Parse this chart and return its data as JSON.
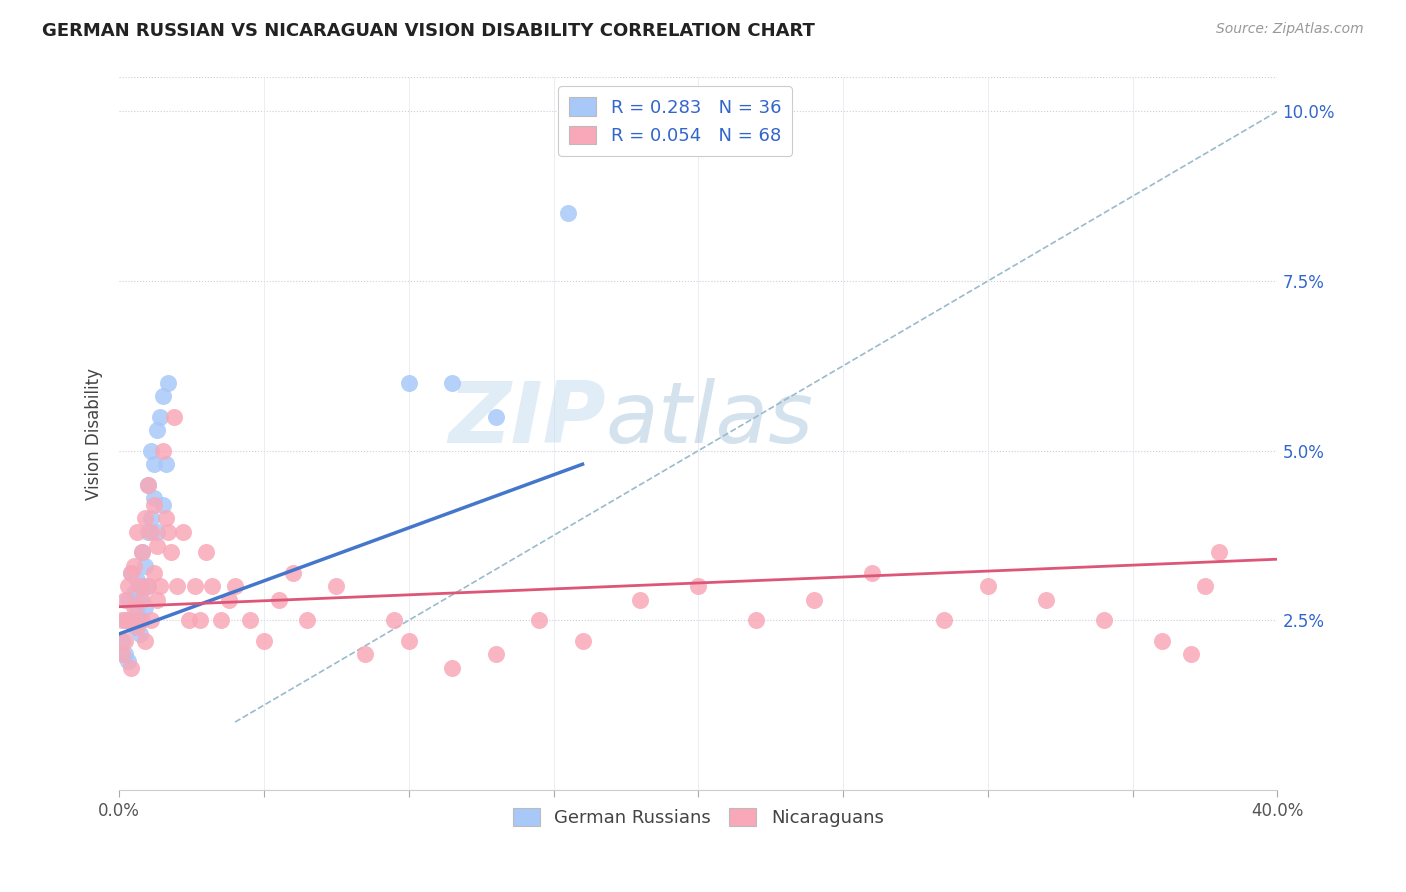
{
  "title": "GERMAN RUSSIAN VS NICARAGUAN VISION DISABILITY CORRELATION CHART",
  "source": "Source: ZipAtlas.com",
  "ylabel": "Vision Disability",
  "watermark_zip": "ZIP",
  "watermark_atlas": "atlas",
  "legend_r1": "R = 0.283   N = 36",
  "legend_r2": "R = 0.054   N = 68",
  "color_gr": "#a8c8f8",
  "color_nic": "#f8a8b8",
  "color_line_gr": "#4477cc",
  "color_line_nic": "#dd5577",
  "color_line_dash": "#99bbcc",
  "xmin": 0.0,
  "xmax": 0.4,
  "ymin": 0.0,
  "ymax": 0.105,
  "ytick_vals": [
    0.025,
    0.05,
    0.075,
    0.1
  ],
  "ytick_labels": [
    "2.5%",
    "5.0%",
    "7.5%",
    "10.0%"
  ],
  "gr_scatter_x": [
    0.001,
    0.002,
    0.002,
    0.003,
    0.003,
    0.004,
    0.004,
    0.005,
    0.005,
    0.006,
    0.006,
    0.007,
    0.007,
    0.008,
    0.008,
    0.008,
    0.009,
    0.009,
    0.01,
    0.01,
    0.01,
    0.011,
    0.011,
    0.012,
    0.012,
    0.013,
    0.013,
    0.014,
    0.015,
    0.015,
    0.016,
    0.017,
    0.1,
    0.115,
    0.13,
    0.155
  ],
  "gr_scatter_y": [
    0.022,
    0.025,
    0.02,
    0.019,
    0.028,
    0.025,
    0.032,
    0.024,
    0.029,
    0.026,
    0.031,
    0.028,
    0.023,
    0.03,
    0.025,
    0.035,
    0.027,
    0.033,
    0.03,
    0.038,
    0.045,
    0.04,
    0.05,
    0.043,
    0.048,
    0.038,
    0.053,
    0.055,
    0.042,
    0.058,
    0.048,
    0.06,
    0.06,
    0.06,
    0.055,
    0.085
  ],
  "nic_scatter_x": [
    0.001,
    0.001,
    0.002,
    0.002,
    0.003,
    0.003,
    0.004,
    0.004,
    0.005,
    0.005,
    0.006,
    0.006,
    0.007,
    0.007,
    0.008,
    0.008,
    0.009,
    0.009,
    0.01,
    0.01,
    0.011,
    0.011,
    0.012,
    0.012,
    0.013,
    0.013,
    0.014,
    0.015,
    0.016,
    0.017,
    0.018,
    0.019,
    0.02,
    0.022,
    0.024,
    0.026,
    0.028,
    0.03,
    0.032,
    0.035,
    0.038,
    0.04,
    0.045,
    0.05,
    0.055,
    0.06,
    0.065,
    0.075,
    0.085,
    0.095,
    0.1,
    0.115,
    0.13,
    0.145,
    0.16,
    0.18,
    0.2,
    0.22,
    0.24,
    0.26,
    0.285,
    0.3,
    0.32,
    0.34,
    0.36,
    0.37,
    0.375,
    0.38
  ],
  "nic_scatter_y": [
    0.025,
    0.02,
    0.028,
    0.022,
    0.03,
    0.025,
    0.032,
    0.018,
    0.027,
    0.033,
    0.024,
    0.038,
    0.03,
    0.025,
    0.035,
    0.028,
    0.04,
    0.022,
    0.045,
    0.03,
    0.038,
    0.025,
    0.042,
    0.032,
    0.036,
    0.028,
    0.03,
    0.05,
    0.04,
    0.038,
    0.035,
    0.055,
    0.03,
    0.038,
    0.025,
    0.03,
    0.025,
    0.035,
    0.03,
    0.025,
    0.028,
    0.03,
    0.025,
    0.022,
    0.028,
    0.032,
    0.025,
    0.03,
    0.02,
    0.025,
    0.022,
    0.018,
    0.02,
    0.025,
    0.022,
    0.028,
    0.03,
    0.025,
    0.028,
    0.032,
    0.025,
    0.03,
    0.028,
    0.025,
    0.022,
    0.02,
    0.03,
    0.035
  ],
  "gr_line_x": [
    0.0,
    0.16
  ],
  "gr_line_y": [
    0.023,
    0.048
  ],
  "nic_line_x": [
    0.0,
    0.4
  ],
  "nic_line_y": [
    0.027,
    0.034
  ],
  "dash_line_x": [
    0.04,
    0.4
  ],
  "dash_line_y": [
    0.01,
    0.1
  ]
}
